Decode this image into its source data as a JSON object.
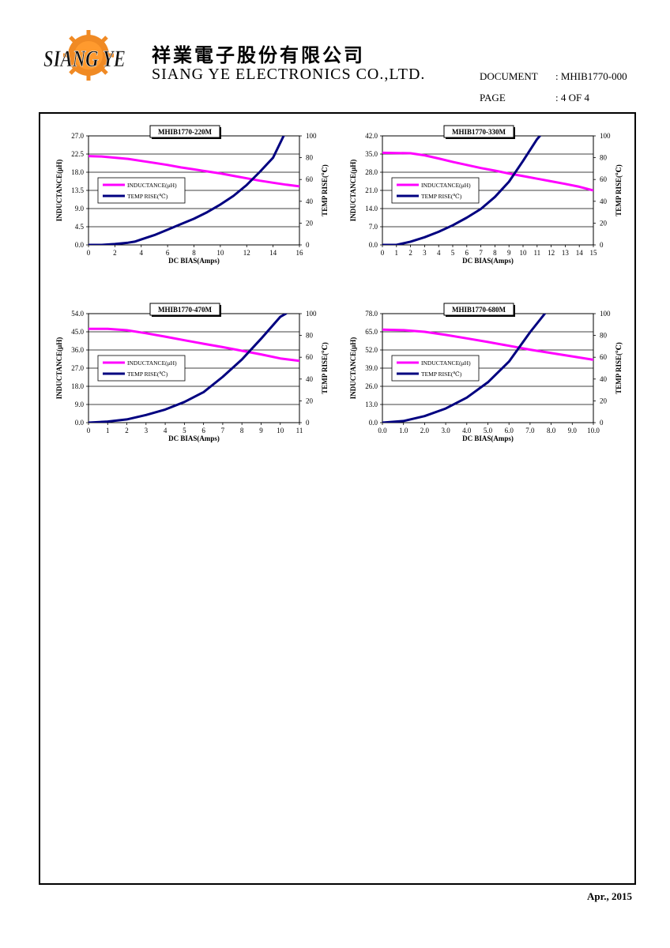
{
  "header": {
    "company_cn": "祥業電子股份有限公司",
    "company_en": "SIANG YE ELECTRONICS CO.,LTD.",
    "logo_text": "SIANG YE",
    "document_label": "DOCUMENT",
    "document_value": ": MHIB1770-000",
    "page_label": "PAGE",
    "page_value": ": 4 OF 4"
  },
  "footer": {
    "date": "Apr., 2015"
  },
  "colors": {
    "inductance": "#ff00ff",
    "temp_rise": "#000080"
  },
  "chart_data": [
    {
      "type": "line",
      "title": "MHIB1770-220M",
      "xlabel": "DC BIAS(Amps)",
      "ylabel": "INDUCTANCE(μH)",
      "y2label": "TEMP RISE(℃)",
      "xlim": [
        0,
        16
      ],
      "xticks": [
        0,
        2,
        4,
        6,
        8,
        10,
        12,
        14,
        16
      ],
      "xtick_labels": [
        "0",
        "2",
        "4",
        "6",
        "8",
        "10",
        "12",
        "14",
        "16"
      ],
      "ylim": [
        0,
        27
      ],
      "yticks": [
        0,
        4.5,
        9,
        13.5,
        18,
        22.5,
        27
      ],
      "ytick_labels": [
        "0.0",
        "4.5",
        "9.0",
        "13.5",
        "18.0",
        "22.5",
        "27.0"
      ],
      "y2lim": [
        0,
        100
      ],
      "y2ticks": [
        0,
        20,
        40,
        60,
        80,
        100
      ],
      "y2tick_labels": [
        "0",
        "20",
        "40",
        "60",
        "80",
        "100"
      ],
      "grid": true,
      "legend": "center-left",
      "series": [
        {
          "name": "INDUCTANCE(μH)",
          "axis": "left",
          "color": "#ff00ff",
          "x": [
            0,
            1,
            2,
            3,
            4,
            5,
            6,
            7,
            8,
            9,
            10,
            11,
            12,
            13,
            14,
            15,
            16
          ],
          "y": [
            22.0,
            21.9,
            21.6,
            21.3,
            20.8,
            20.3,
            19.8,
            19.2,
            18.7,
            18.2,
            17.7,
            17.1,
            16.5,
            15.9,
            15.4,
            14.9,
            14.5
          ]
        },
        {
          "name": "TEMP RISE(℃)",
          "axis": "right",
          "color": "#000080",
          "x": [
            0,
            1,
            2,
            3,
            3.5,
            4,
            5,
            6,
            7,
            8,
            9,
            10,
            11,
            12,
            13,
            14,
            14.8
          ],
          "y": [
            0,
            0,
            0.8,
            2,
            3,
            5,
            9,
            14,
            19,
            24,
            30,
            37,
            45,
            55,
            67,
            80,
            100
          ]
        }
      ]
    },
    {
      "type": "line",
      "title": "MHIB1770-330M",
      "xlabel": "DC BIAS(Amps)",
      "ylabel": "INDUCTANCE(μH)",
      "y2label": "TEMP RISE(℃)",
      "xlim": [
        0,
        15
      ],
      "xticks": [
        0,
        1,
        2,
        3,
        4,
        5,
        6,
        7,
        8,
        9,
        10,
        11,
        12,
        13,
        14,
        15
      ],
      "xtick_labels": [
        "0",
        "1",
        "2",
        "3",
        "4",
        "5",
        "6",
        "7",
        "8",
        "9",
        "10",
        "11",
        "12",
        "13",
        "14",
        "15"
      ],
      "ylim": [
        0,
        42
      ],
      "yticks": [
        0,
        7,
        14,
        21,
        28,
        35,
        42
      ],
      "ytick_labels": [
        "0.0",
        "7.0",
        "14.0",
        "21.0",
        "28.0",
        "35.0",
        "42.0"
      ],
      "y2lim": [
        0,
        100
      ],
      "y2ticks": [
        0,
        20,
        40,
        60,
        80,
        100
      ],
      "y2tick_labels": [
        "0",
        "20",
        "40",
        "60",
        "80",
        "100"
      ],
      "grid": true,
      "legend": "center-left",
      "series": [
        {
          "name": "INDUCTANCE(μH)",
          "axis": "left",
          "color": "#ff00ff",
          "x": [
            0,
            1,
            2,
            3,
            4,
            5,
            6,
            7,
            8,
            9,
            10,
            11,
            12,
            13,
            14,
            15
          ],
          "y": [
            35.5,
            35.4,
            35.3,
            34.5,
            33.3,
            32.0,
            30.8,
            29.6,
            28.6,
            27.5,
            26.5,
            25.5,
            24.5,
            23.5,
            22.4,
            21.0
          ]
        },
        {
          "name": "TEMP RISE(℃)",
          "axis": "right",
          "color": "#000080",
          "x": [
            0,
            1,
            2,
            3,
            4,
            5,
            6,
            7,
            8,
            9,
            10,
            11,
            11.2
          ],
          "y": [
            0,
            0,
            3,
            7,
            12,
            18,
            25,
            33,
            44,
            58,
            77,
            97,
            100
          ]
        }
      ]
    },
    {
      "type": "line",
      "title": "MHIB1770-470M",
      "xlabel": "DC BIAS(Amps)",
      "ylabel": "INDUCTANCE(μH)",
      "y2label": "TEMP RISE(℃)",
      "xlim": [
        0,
        11
      ],
      "xticks": [
        0,
        1,
        2,
        3,
        4,
        5,
        6,
        7,
        8,
        9,
        10,
        11
      ],
      "xtick_labels": [
        "0",
        "1",
        "2",
        "3",
        "4",
        "5",
        "6",
        "7",
        "8",
        "9",
        "10",
        "11"
      ],
      "ylim": [
        0,
        54
      ],
      "yticks": [
        0,
        9,
        18,
        27,
        36,
        45,
        54
      ],
      "ytick_labels": [
        "0.0",
        "9.0",
        "18.0",
        "27.0",
        "36.0",
        "45.0",
        "54.0"
      ],
      "y2lim": [
        0,
        100
      ],
      "y2ticks": [
        0,
        20,
        40,
        60,
        80,
        100
      ],
      "y2tick_labels": [
        "0",
        "20",
        "40",
        "60",
        "80",
        "100"
      ],
      "grid": true,
      "legend": "center-left",
      "series": [
        {
          "name": "INDUCTANCE(μH)",
          "axis": "left",
          "color": "#ff00ff",
          "x": [
            0,
            1,
            2,
            3,
            4,
            5,
            6,
            7,
            8,
            9,
            10,
            11
          ],
          "y": [
            46.5,
            46.5,
            45.8,
            44.3,
            42.6,
            40.8,
            39.1,
            37.4,
            35.6,
            33.8,
            31.8,
            30.6
          ]
        },
        {
          "name": "TEMP RISE(℃)",
          "axis": "right",
          "color": "#000080",
          "x": [
            0,
            1,
            2,
            3,
            4,
            5,
            6,
            7,
            8,
            9,
            10,
            10.3
          ],
          "y": [
            0,
            1,
            3,
            7,
            12,
            19,
            28,
            42,
            58,
            77,
            97,
            100
          ]
        }
      ]
    },
    {
      "type": "line",
      "title": "MHIB1770-680M",
      "xlabel": "DC BIAS(Amps)",
      "ylabel": "INDUCTANCE(μH)",
      "y2label": "TEMP RISE(℃)",
      "xlim": [
        0,
        10
      ],
      "xticks": [
        0,
        1,
        2,
        3,
        4,
        5,
        6,
        7,
        8,
        9,
        10
      ],
      "xtick_labels": [
        "0.0",
        "1.0",
        "2.0",
        "3.0",
        "4.0",
        "5.0",
        "6.0",
        "7.0",
        "8.0",
        "9.0",
        "10.0"
      ],
      "ylim": [
        0,
        78
      ],
      "yticks": [
        0,
        13,
        26,
        39,
        52,
        65,
        78
      ],
      "ytick_labels": [
        "0.0",
        "13.0",
        "26.0",
        "39.0",
        "52.0",
        "65.0",
        "78.0"
      ],
      "y2lim": [
        0,
        100
      ],
      "y2ticks": [
        0,
        20,
        40,
        60,
        80,
        100
      ],
      "y2tick_labels": [
        "0",
        "20",
        "40",
        "60",
        "80",
        "100"
      ],
      "grid": true,
      "legend": "center-left",
      "series": [
        {
          "name": "INDUCTANCE(μH)",
          "axis": "left",
          "color": "#ff00ff",
          "x": [
            0,
            1,
            2,
            3,
            4,
            5,
            6,
            7,
            8,
            9,
            10
          ],
          "y": [
            66.5,
            66.2,
            65.0,
            62.8,
            60.3,
            57.7,
            55.0,
            52.2,
            49.8,
            47.4,
            45.0
          ]
        },
        {
          "name": "TEMP RISE(℃)",
          "axis": "right",
          "color": "#000080",
          "x": [
            0,
            1,
            2,
            3,
            4,
            5,
            6,
            7,
            7.7
          ],
          "y": [
            0,
            1.5,
            6,
            13,
            23,
            37,
            56,
            83,
            100
          ]
        }
      ]
    }
  ]
}
